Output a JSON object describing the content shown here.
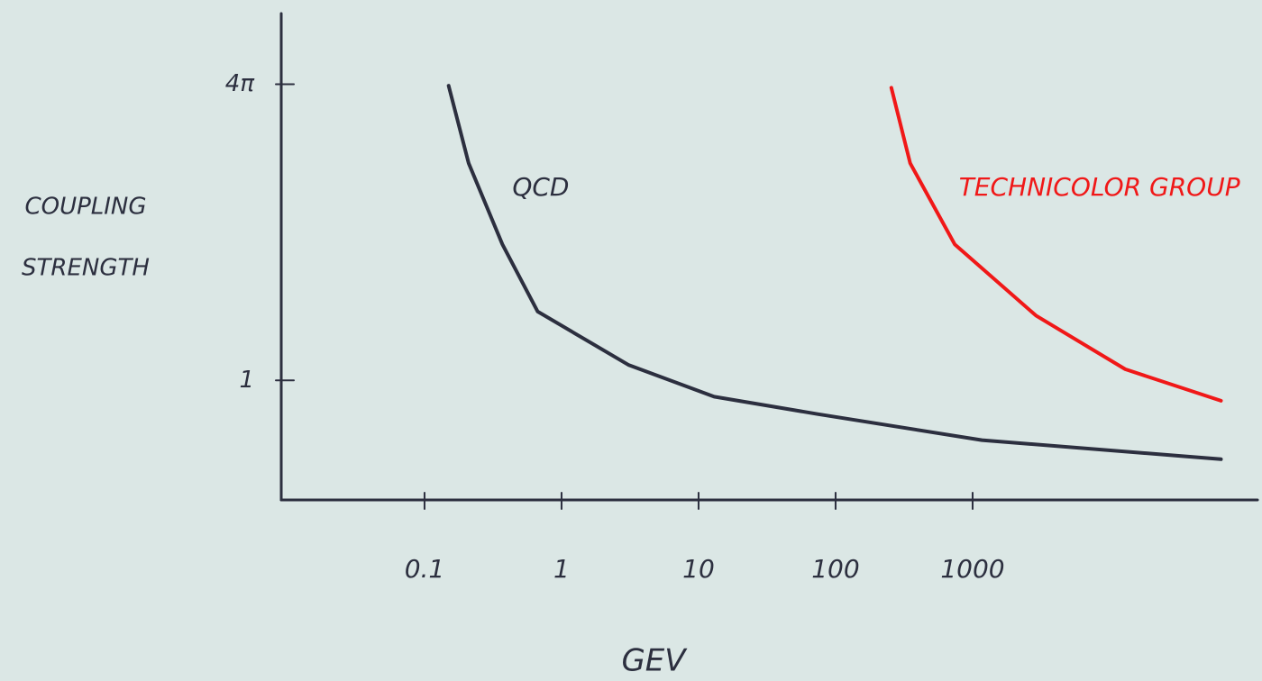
{
  "chart_data": {
    "type": "line",
    "xlabel": "GEV",
    "ylabel": [
      "COUPLING",
      "STRENGTH"
    ],
    "xscale": "log",
    "yscale": "log",
    "xlim": [
      0.009,
      120000
    ],
    "ylim": [
      0.36,
      23
    ],
    "xticks": [
      0.1,
      1,
      10,
      100,
      1000
    ],
    "yticks": [
      1,
      {
        "value": 12.566,
        "label": "4π"
      }
    ],
    "series": [
      {
        "name": "QCD",
        "color": "#2c2f3f",
        "x": [
          0.15,
          0.21,
          0.37,
          0.67,
          3.1,
          13,
          74,
          1170,
          65000
        ],
        "values": [
          12.4,
          6.4,
          3.2,
          1.8,
          1.14,
          0.87,
          0.75,
          0.6,
          0.51
        ]
      },
      {
        "name": "TECHNICOLOR GROUP",
        "color": "#f01818",
        "x": [
          255,
          350,
          740,
          2900,
          13000,
          65000
        ],
        "values": [
          12.2,
          6.4,
          3.2,
          1.74,
          1.1,
          0.84
        ]
      }
    ]
  }
}
